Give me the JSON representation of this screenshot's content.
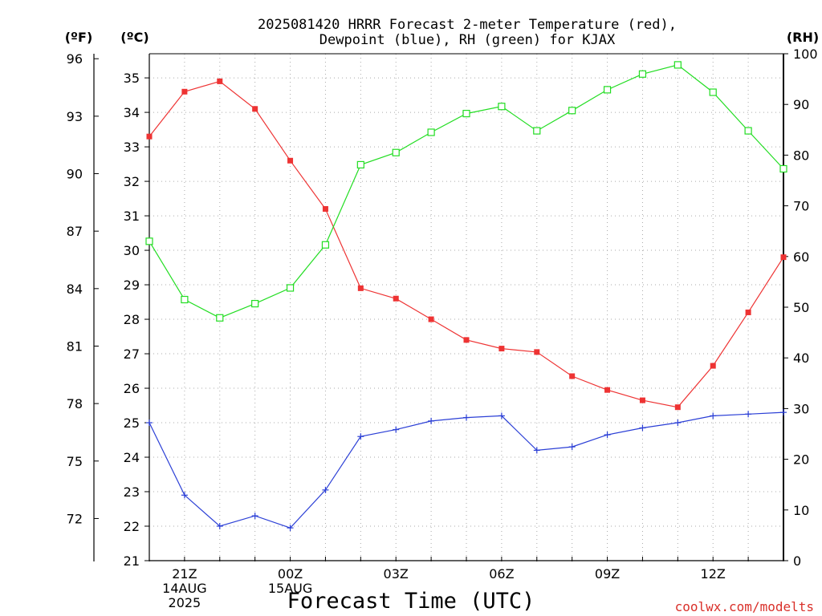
{
  "chart_data": {
    "type": "line",
    "title": "2025081420 HRRR Forecast 2-meter Temperature (red),",
    "subtitle": "Dewpoint (blue), RH (green) for KJAX",
    "xlabel": "Forecast Time (UTC)",
    "watermark": "coolwx.com/modelts",
    "left_axis_f": {
      "unit_label": "(ºF)",
      "ticks": [
        72,
        75,
        78,
        81,
        84,
        87,
        90,
        93,
        96
      ]
    },
    "left_axis_c": {
      "unit_label": "(ºC)",
      "ylim": [
        21,
        35.7
      ],
      "ticks": [
        21,
        22,
        23,
        24,
        25,
        26,
        27,
        28,
        29,
        30,
        31,
        32,
        33,
        34,
        35
      ]
    },
    "right_axis_rh": {
      "unit_label": "(RH)",
      "ylim": [
        0,
        100
      ],
      "ticks": [
        0,
        10,
        20,
        30,
        40,
        50,
        60,
        70,
        80,
        90,
        100
      ]
    },
    "x_hours": [
      20,
      21,
      22,
      23,
      24,
      25,
      26,
      27,
      28,
      29,
      30,
      31,
      32,
      33,
      34,
      35,
      36,
      37,
      38
    ],
    "xlim": [
      20,
      38
    ],
    "x_ticks": [
      {
        "hour": 21,
        "lines": [
          "21Z",
          "14AUG",
          "2025"
        ]
      },
      {
        "hour": 24,
        "lines": [
          "00Z",
          "15AUG"
        ]
      },
      {
        "hour": 27,
        "lines": [
          "03Z"
        ]
      },
      {
        "hour": 30,
        "lines": [
          "06Z"
        ]
      },
      {
        "hour": 33,
        "lines": [
          "09Z"
        ]
      },
      {
        "hour": 36,
        "lines": [
          "12Z"
        ]
      }
    ],
    "grid": true,
    "series": [
      {
        "name": "Temperature",
        "color": "#ee3333",
        "marker": "filled-square",
        "axis": "celsius",
        "values": [
          33.3,
          34.6,
          34.9,
          34.1,
          32.6,
          31.2,
          28.9,
          28.6,
          28.0,
          27.4,
          27.15,
          27.05,
          26.35,
          25.95,
          25.65,
          25.45,
          26.65,
          28.2,
          29.8
        ]
      },
      {
        "name": "Dewpoint",
        "color": "#2b3fd6",
        "marker": "plus",
        "axis": "celsius",
        "values": [
          25.0,
          22.9,
          22.0,
          22.3,
          21.95,
          23.05,
          24.6,
          24.8,
          25.05,
          25.15,
          25.2,
          24.2,
          24.3,
          24.65,
          24.85,
          25.0,
          25.2,
          25.25,
          25.3
        ]
      },
      {
        "name": "RH",
        "color": "#22dd22",
        "marker": "open-square",
        "axis": "rh",
        "values": [
          63.0,
          51.5,
          47.9,
          50.7,
          53.8,
          62.3,
          78.1,
          80.5,
          84.5,
          88.2,
          89.6,
          84.8,
          88.8,
          92.9,
          96.0,
          97.8,
          92.4,
          84.8,
          77.3
        ]
      }
    ]
  }
}
